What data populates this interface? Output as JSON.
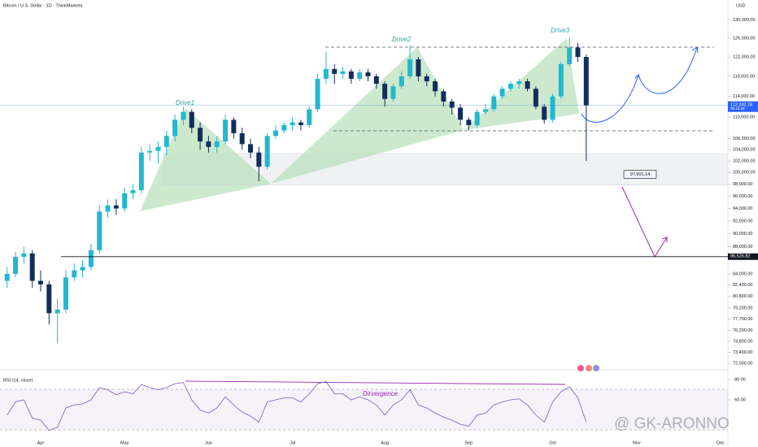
{
  "chart_data": [
    {
      "type": "candlestick",
      "title": "Bitcoin / U.S. Dollar · 1D · ThinkMarkets",
      "currency": "USD",
      "watermark": "@ GK-ARONNO",
      "annotations": [
        "Drive1",
        "Drive2",
        "Drive3"
      ],
      "countdown": "05:13:28",
      "log_scale": true,
      "up_color": "#22b8cf",
      "down_color": "#132d5b",
      "categories": [
        null,
        null,
        null,
        null,
        "Apr",
        null,
        null,
        null,
        null,
        null,
        null,
        null,
        null,
        null,
        "May",
        null,
        null,
        null,
        null,
        null,
        null,
        null,
        null,
        null,
        "Jun",
        null,
        null,
        null,
        null,
        null,
        null,
        null,
        null,
        null,
        "Jul",
        null,
        null,
        null,
        null,
        null,
        null,
        null,
        null,
        null,
        null,
        "Aug",
        null,
        null,
        null,
        null,
        null,
        null,
        null,
        null,
        null,
        "Sep",
        null,
        null,
        null,
        null,
        null,
        null,
        null,
        null,
        null,
        "Oct",
        null,
        null,
        null,
        null,
        null,
        null,
        null,
        null,
        null,
        "Nov",
        null,
        null,
        null,
        null,
        null,
        null,
        null,
        null,
        null,
        "Dec"
      ],
      "open": [
        83000,
        84000,
        86500,
        87000,
        83000,
        82500,
        78500,
        79000,
        83500,
        84500,
        85000,
        87500,
        93500,
        94500,
        94000,
        96500,
        97000,
        103500,
        103800,
        104500,
        106500,
        109500,
        111000,
        108000,
        105500,
        104500,
        105500,
        109500,
        107000,
        105000,
        103500,
        101000,
        106500,
        107500,
        108500,
        109000,
        108500,
        111500,
        117500,
        119500,
        118500,
        119000,
        117500,
        118800,
        118000,
        116500,
        113500,
        116000,
        118000,
        121500,
        118000,
        117000,
        115000,
        113000,
        111800,
        109500,
        108500,
        111000,
        111500,
        114000,
        115500,
        116500,
        117000,
        115500,
        112000,
        109500,
        114000,
        120500,
        124000,
        122000,
        null,
        null,
        null,
        null,
        null,
        null,
        null,
        null,
        null,
        null,
        null,
        null,
        null,
        null,
        null,
        null
      ],
      "high": [
        85000,
        87200,
        88000,
        87500,
        84500,
        83000,
        80500,
        84500,
        85500,
        86000,
        88500,
        94500,
        95500,
        95500,
        97500,
        98000,
        104500,
        105000,
        105500,
        107500,
        110500,
        112000,
        111500,
        109000,
        106500,
        106500,
        110500,
        110000,
        108000,
        106000,
        104500,
        107000,
        108500,
        109000,
        110000,
        109500,
        112000,
        118500,
        123000,
        120500,
        120000,
        119500,
        119500,
        119500,
        118500,
        117000,
        116500,
        119000,
        124500,
        122000,
        118500,
        117500,
        115500,
        113500,
        112500,
        110000,
        111500,
        112500,
        114500,
        116000,
        117000,
        117500,
        117500,
        116000,
        112500,
        114500,
        121000,
        126200,
        125000,
        122500,
        null,
        null,
        null,
        null,
        null,
        null,
        null,
        null,
        null,
        null,
        null,
        null,
        null,
        null,
        null,
        null
      ],
      "low": [
        82000,
        83500,
        85500,
        82000,
        81500,
        77000,
        74500,
        78500,
        83000,
        83500,
        84500,
        87000,
        92500,
        93000,
        93500,
        95500,
        96500,
        102000,
        101500,
        103000,
        105500,
        108500,
        107000,
        104000,
        103500,
        103500,
        105000,
        106000,
        104000,
        102500,
        98500,
        100500,
        106000,
        107000,
        107500,
        107500,
        108000,
        111000,
        116500,
        116500,
        117500,
        116500,
        117000,
        117000,
        115500,
        112000,
        113000,
        115500,
        117500,
        117000,
        116000,
        114000,
        112000,
        110500,
        108500,
        107500,
        108000,
        110500,
        111000,
        113500,
        115000,
        115500,
        115000,
        111500,
        108800,
        109000,
        113500,
        120000,
        121000,
        102000,
        null,
        null,
        null,
        null,
        null,
        null,
        null,
        null,
        null,
        null,
        null,
        null,
        null,
        null,
        null,
        null
      ],
      "close": [
        84000,
        86500,
        87000,
        83000,
        82500,
        78500,
        79000,
        83500,
        84500,
        85000,
        87500,
        93500,
        94500,
        94000,
        96500,
        97000,
        103500,
        103800,
        104500,
        106500,
        109500,
        111000,
        108000,
        105500,
        104500,
        105500,
        109500,
        107000,
        105000,
        103500,
        101000,
        106500,
        107500,
        108500,
        109000,
        108500,
        111500,
        117500,
        119500,
        118500,
        119000,
        117500,
        118800,
        118000,
        116500,
        113500,
        116000,
        118000,
        121500,
        118000,
        117000,
        115000,
        113000,
        111800,
        109500,
        108500,
        111000,
        111500,
        114000,
        115500,
        116500,
        117000,
        115500,
        112000,
        109500,
        114000,
        120500,
        124000,
        122000,
        112242.78,
        null,
        null,
        null,
        null,
        null,
        null,
        null,
        null,
        null,
        null,
        null,
        null,
        null,
        null,
        null,
        null
      ],
      "ylim": [
        71220,
        130850
      ],
      "yticks": [
        {
          "value": 130000,
          "label": "130,000.00"
        },
        {
          "value": 126000,
          "label": "126,000.00"
        },
        {
          "value": 122000,
          "label": "122,000.00"
        },
        {
          "value": 118000,
          "label": "118,000.00"
        },
        {
          "value": 114000,
          "label": "114,000.00"
        },
        {
          "value": 110000,
          "label": "110,000.00"
        },
        {
          "value": 106000,
          "label": "106,000.00"
        },
        {
          "value": 104000,
          "label": "104,000.00"
        },
        {
          "value": 102000,
          "label": "102,000.00"
        },
        {
          "value": 100000,
          "label": "100,000.00"
        },
        {
          "value": 98000,
          "label": "98,000.00"
        },
        {
          "value": 96000,
          "label": "96,000.00"
        },
        {
          "value": 94000,
          "label": "94,000.00"
        },
        {
          "value": 92000,
          "label": "92,000.00"
        },
        {
          "value": 90000,
          "label": "90,000.00"
        },
        {
          "value": 88000,
          "label": "88,000.00"
        },
        {
          "value": 84000,
          "label": "84,000.00"
        },
        {
          "value": 82400,
          "label": "82,400.00"
        },
        {
          "value": 80800,
          "label": "80,800.00"
        },
        {
          "value": 79200,
          "label": "79,200.00"
        },
        {
          "value": 77700,
          "label": "77,700.00"
        },
        {
          "value": 76200,
          "label": "76,200.00"
        },
        {
          "value": 74800,
          "label": "74,800.00"
        },
        {
          "value": 73400,
          "label": "73,400.00"
        },
        {
          "value": 72000,
          "label": "72,000.00"
        }
      ],
      "hlines": [
        {
          "value": 112242.78,
          "label": "112,242.78",
          "color": "#2962ff"
        },
        {
          "value": 86526.82,
          "label": "86,526.82",
          "color": "#131722"
        }
      ],
      "callout": {
        "value": 97901.14,
        "label": "97,901.14"
      }
    },
    {
      "type": "line",
      "title": "RSI (14, close)",
      "annotation": "Dirvergence",
      "color": "#7e57c2",
      "values": [
        45,
        58,
        60,
        42,
        40,
        30,
        33,
        52,
        55,
        56,
        60,
        72,
        70,
        65,
        68,
        66,
        75,
        72,
        70,
        72,
        76,
        77,
        60,
        50,
        47,
        52,
        63,
        55,
        48,
        44,
        38,
        58,
        60,
        62,
        62,
        58,
        66,
        76,
        78,
        66,
        66,
        60,
        63,
        60,
        55,
        45,
        55,
        60,
        70,
        55,
        52,
        47,
        43,
        40,
        36,
        34,
        45,
        47,
        55,
        58,
        60,
        61,
        55,
        45,
        38,
        58,
        68,
        73,
        62,
        38,
        null,
        null,
        null,
        null,
        null,
        null,
        null,
        null,
        null,
        null,
        null,
        null,
        null,
        null,
        null,
        null
      ],
      "ylim": [
        21.6,
        85.6
      ],
      "yticks": [
        {
          "value": 80,
          "label": "80.00"
        },
        {
          "value": 60,
          "label": "60.00"
        }
      ]
    }
  ]
}
